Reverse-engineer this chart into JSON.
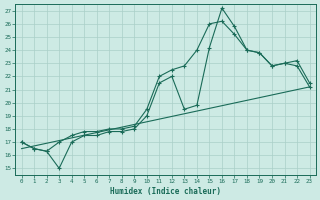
{
  "xlabel": "Humidex (Indice chaleur)",
  "bg_color": "#cdeae4",
  "line_color": "#1a6b58",
  "grid_color": "#aacfc8",
  "xlim": [
    -0.5,
    23.5
  ],
  "ylim": [
    14.5,
    27.5
  ],
  "xticks": [
    0,
    1,
    2,
    3,
    4,
    5,
    6,
    7,
    8,
    9,
    10,
    11,
    12,
    13,
    14,
    15,
    16,
    17,
    18,
    19,
    20,
    21,
    22,
    23
  ],
  "yticks": [
    15,
    16,
    17,
    18,
    19,
    20,
    21,
    22,
    23,
    24,
    25,
    26,
    27
  ],
  "series1_x": [
    0,
    1,
    2,
    3,
    4,
    5,
    6,
    7,
    8,
    9,
    10,
    11,
    12,
    13,
    14,
    15,
    16,
    17,
    18,
    19,
    20,
    21,
    22,
    23
  ],
  "series1_y": [
    17.0,
    16.5,
    16.3,
    15.0,
    17.0,
    17.5,
    17.5,
    17.8,
    17.8,
    18.0,
    19.0,
    21.5,
    22.0,
    19.5,
    19.8,
    24.2,
    27.2,
    25.8,
    24.0,
    23.8,
    22.8,
    23.0,
    22.8,
    21.2
  ],
  "series2_x": [
    0,
    1,
    2,
    3,
    4,
    5,
    6,
    7,
    8,
    9,
    10,
    11,
    12,
    13,
    14,
    15,
    16,
    17,
    18,
    19,
    20,
    21,
    22,
    23
  ],
  "series2_y": [
    17.0,
    16.5,
    16.3,
    17.0,
    17.5,
    17.8,
    17.8,
    18.0,
    18.0,
    18.2,
    19.5,
    22.0,
    22.5,
    22.8,
    24.0,
    26.0,
    26.2,
    25.2,
    24.0,
    23.8,
    22.8,
    23.0,
    23.2,
    21.5
  ],
  "series3_x": [
    0,
    23
  ],
  "series3_y": [
    16.5,
    21.2
  ]
}
